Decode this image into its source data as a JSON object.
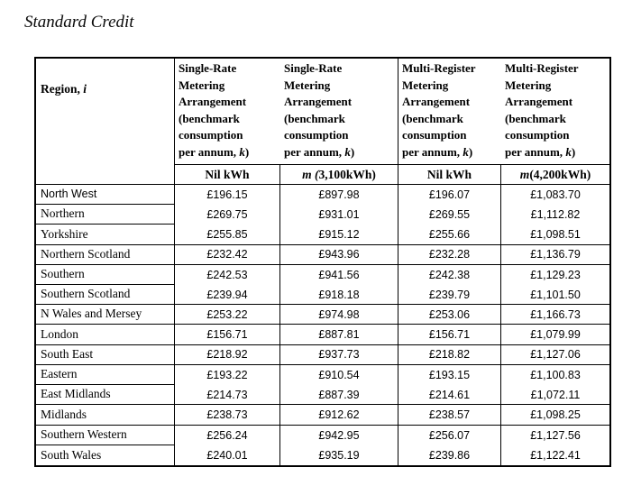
{
  "title": "Standard Credit",
  "table": {
    "region_header": {
      "text": "Region, ",
      "italic": "i"
    },
    "headers": [
      {
        "l1": "Single-Rate",
        "l2": "Metering",
        "l3": "Arrangement",
        "l4": "(benchmark",
        "l5": "consumption",
        "l6_pre": "per annum, ",
        "l6_italic": "k",
        "l6_post": ")"
      },
      {
        "l1": "Single-Rate",
        "l2": "Metering",
        "l3": "Arrangement",
        "l4": "(benchmark",
        "l5": "consumption",
        "l6_pre": "per annum, ",
        "l6_italic": "k",
        "l6_post": ")"
      },
      {
        "l1": "Multi-Register",
        "l2": "Metering",
        "l3": "Arrangement",
        "l4": "(benchmark",
        "l5": "consumption",
        "l6_pre": "per annum, ",
        "l6_italic": "k",
        "l6_post": ")"
      },
      {
        "l1": "Multi-Register",
        "l2": "Metering",
        "l3": "Arrangement",
        "l4": "(benchmark",
        "l5": "consumption",
        "l6_pre": "per annum, ",
        "l6_italic": "k",
        "l6_post": ")"
      }
    ],
    "subheaders": [
      {
        "italic": "",
        "text": "Nil kWh"
      },
      {
        "italic": "m (",
        "text": "3,100kWh)"
      },
      {
        "italic": "",
        "text": "Nil kWh"
      },
      {
        "italic": "m",
        "text": " (4,200kWh)"
      }
    ],
    "rows": [
      {
        "region": "North West",
        "values": [
          "£196.15",
          "£897.98",
          "£196.07",
          "£1,083.70"
        ]
      },
      {
        "region": "Northern",
        "values": [
          "£269.75",
          "£931.01",
          "£269.55",
          "£1,112.82"
        ]
      },
      {
        "region": "Yorkshire",
        "values": [
          "£255.85",
          "£915.12",
          "£255.66",
          "£1,098.51"
        ]
      },
      {
        "region": "Northern Scotland",
        "values": [
          "£232.42",
          "£943.96",
          "£232.28",
          "£1,136.79"
        ]
      },
      {
        "region": "Southern",
        "values": [
          "£242.53",
          "£941.56",
          "£242.38",
          "£1,129.23"
        ]
      },
      {
        "region": "Southern Scotland",
        "values": [
          "£239.94",
          "£918.18",
          "£239.79",
          "£1,101.50"
        ]
      },
      {
        "region": "N Wales and Mersey",
        "values": [
          "£253.22",
          "£974.98",
          "£253.06",
          "£1,166.73"
        ]
      },
      {
        "region": "London",
        "values": [
          "£156.71",
          "£887.81",
          "£156.71",
          "£1,079.99"
        ]
      },
      {
        "region": "South East",
        "values": [
          "£218.92",
          "£937.73",
          "£218.82",
          "£1,127.06"
        ]
      },
      {
        "region": "Eastern",
        "values": [
          "£193.22",
          "£910.54",
          "£193.15",
          "£1,100.83"
        ]
      },
      {
        "region": "East Midlands",
        "values": [
          "£214.73",
          "£887.39",
          "£214.61",
          "£1,072.11"
        ]
      },
      {
        "region": "Midlands",
        "values": [
          "£238.73",
          "£912.62",
          "£238.57",
          "£1,098.25"
        ]
      },
      {
        "region": "Southern Western",
        "values": [
          "£256.24",
          "£942.95",
          "£256.07",
          "£1,127.56"
        ]
      },
      {
        "region": "South Wales",
        "values": [
          "£240.01",
          "£935.19",
          "£239.86",
          "£1,122.41"
        ]
      }
    ]
  }
}
